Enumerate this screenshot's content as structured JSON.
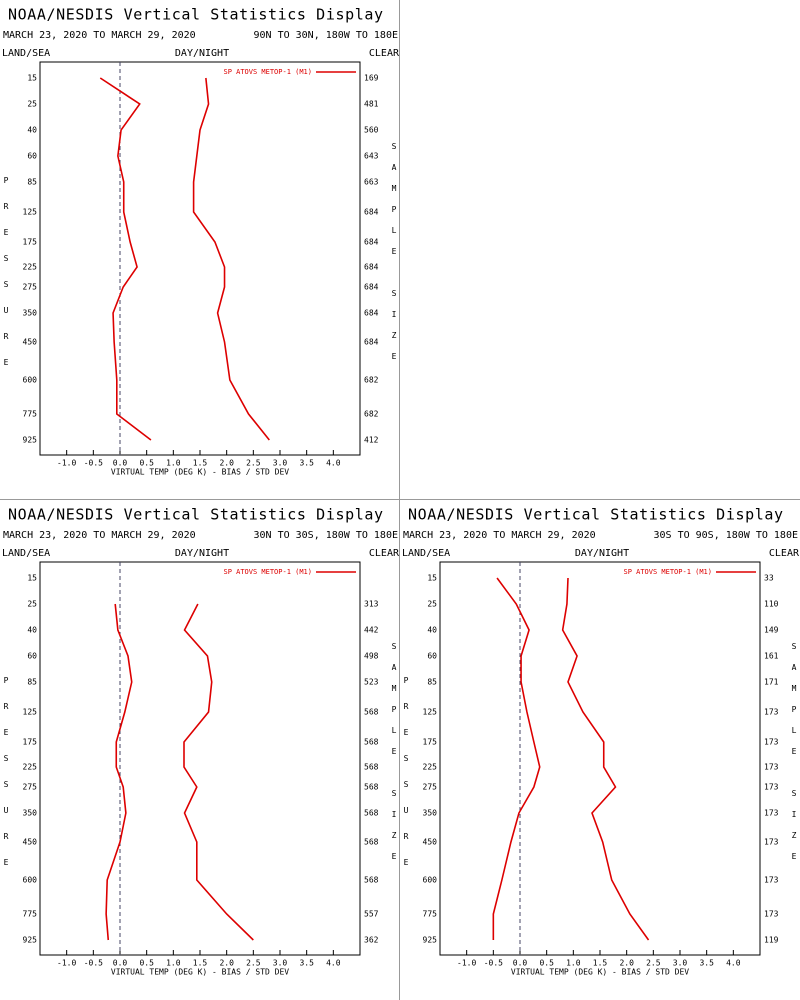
{
  "chart_data": [
    {
      "type": "line",
      "title": "NOAA/NESDIS Vertical Statistics Display",
      "date_range": "MARCH 23, 2020 TO MARCH 29, 2020",
      "region": "90N TO 30N, 180W TO 180E",
      "land_sea": "LAND/SEA",
      "day_night": "DAY/NIGHT",
      "clear": "CLEAR",
      "y_label": "PRESSURE",
      "y2_label": "SAMPLE SIZE",
      "x_label": "VIRTUAL TEMP (DEG K) - BIAS / STD DEV",
      "categories": [
        "15",
        "25",
        "40",
        "60",
        "85",
        "125",
        "175",
        "225",
        "275",
        "350",
        "450",
        "600",
        "775",
        "925"
      ],
      "sample_size": [
        169,
        481,
        560,
        643,
        663,
        684,
        684,
        684,
        684,
        684,
        684,
        682,
        682,
        412
      ],
      "xlim": [
        -1.5,
        4.5
      ],
      "xticks": [
        {
          "value": -1,
          "label": "-1.0"
        },
        -0.5,
        {
          "value": 0,
          "label": "0.0"
        },
        0.5,
        {
          "value": 1,
          "label": "1.0"
        },
        1.5,
        {
          "value": 2,
          "label": "2.0"
        },
        2.5,
        {
          "value": 3,
          "label": "3.0"
        },
        3.5,
        {
          "value": 4,
          "label": "4.0"
        }
      ],
      "series": [
        {
          "name": "SP ATOVS METOP-1 (M1)",
          "color": "#dd0000",
          "bias": [
            -0.37,
            0.37,
            0.02,
            -0.04,
            0.07,
            0.07,
            0.19,
            0.32,
            0.06,
            -0.13,
            -0.11,
            -0.06,
            -0.06,
            0.58
          ],
          "std_dev": [
            1.61,
            1.66,
            1.5,
            1.44,
            1.38,
            1.38,
            1.78,
            1.96,
            1.96,
            1.83,
            1.96,
            2.06,
            2.41,
            2.8
          ]
        }
      ]
    },
    {
      "type": "line",
      "title": "NOAA/NESDIS Vertical Statistics Display",
      "date_range": "MARCH 23, 2020 TO MARCH 29, 2020",
      "region": "30N TO 30S, 180W TO 180E",
      "land_sea": "LAND/SEA",
      "day_night": "DAY/NIGHT",
      "clear": "CLEAR",
      "y_label": "PRESSURE",
      "y2_label": "SAMPLE SIZE",
      "x_label": "VIRTUAL TEMP (DEG K) - BIAS / STD DEV",
      "categories": [
        "15",
        "25",
        "40",
        "60",
        "85",
        "125",
        "175",
        "225",
        "275",
        "350",
        "450",
        "600",
        "775",
        "925"
      ],
      "sample_size": [
        null,
        313,
        442,
        498,
        523,
        568,
        568,
        568,
        568,
        568,
        568,
        568,
        557,
        362
      ],
      "xlim": [
        -1.5,
        4.5
      ],
      "xticks": [
        {
          "value": -1,
          "label": "-1.0"
        },
        -0.5,
        {
          "value": 0,
          "label": "0.0"
        },
        0.5,
        {
          "value": 1,
          "label": "1.0"
        },
        1.5,
        {
          "value": 2,
          "label": "2.0"
        },
        2.5,
        {
          "value": 3,
          "label": "3.0"
        },
        3.5,
        {
          "value": 4,
          "label": "4.0"
        }
      ],
      "series": [
        {
          "name": "SP ATOVS METOP-1 (M1)",
          "color": "#dd0000",
          "bias": [
            null,
            -0.09,
            -0.04,
            0.15,
            0.22,
            0.09,
            -0.07,
            -0.07,
            0.06,
            0.11,
            0,
            -0.24,
            -0.26,
            -0.22
          ],
          "std_dev": [
            null,
            1.46,
            1.21,
            1.64,
            1.72,
            1.66,
            1.2,
            1.2,
            1.44,
            1.21,
            1.44,
            1.44,
            2.0,
            2.5
          ]
        }
      ]
    },
    {
      "type": "line",
      "title": "NOAA/NESDIS Vertical Statistics Display",
      "date_range": "MARCH 23, 2020 TO MARCH 29, 2020",
      "region": "30S TO 90S, 180W TO 180E",
      "land_sea": "LAND/SEA",
      "day_night": "DAY/NIGHT",
      "clear": "CLEAR",
      "y_label": "PRESSURE",
      "y2_label": "SAMPLE SIZE",
      "x_label": "VIRTUAL TEMP (DEG K) - BIAS / STD DEV",
      "categories": [
        "15",
        "25",
        "40",
        "60",
        "85",
        "125",
        "175",
        "225",
        "275",
        "350",
        "450",
        "600",
        "775",
        "925"
      ],
      "sample_size": [
        33,
        110,
        149,
        161,
        171,
        173,
        173,
        173,
        173,
        173,
        173,
        173,
        173,
        119
      ],
      "xlim": [
        -1.5,
        4.5
      ],
      "xticks": [
        {
          "value": -1,
          "label": "-1.0"
        },
        -0.5,
        {
          "value": 0,
          "label": "0.0"
        },
        0.5,
        {
          "value": 1,
          "label": "1.0"
        },
        1.5,
        {
          "value": 2,
          "label": "2.0"
        },
        2.5,
        {
          "value": 3,
          "label": "3.0"
        },
        3.5,
        {
          "value": 4,
          "label": "4.0"
        }
      ],
      "series": [
        {
          "name": "SP ATOVS METOP-1 (M1)",
          "color": "#dd0000",
          "bias": [
            -0.43,
            -0.07,
            0.17,
            0.02,
            0.02,
            0.13,
            0.26,
            0.37,
            0.26,
            -0.02,
            -0.17,
            -0.34,
            -0.5,
            -0.5
          ],
          "std_dev": [
            0.9,
            0.88,
            0.8,
            1.07,
            0.9,
            1.18,
            1.57,
            1.57,
            1.79,
            1.35,
            1.55,
            1.72,
            2.06,
            2.41
          ]
        }
      ]
    }
  ]
}
